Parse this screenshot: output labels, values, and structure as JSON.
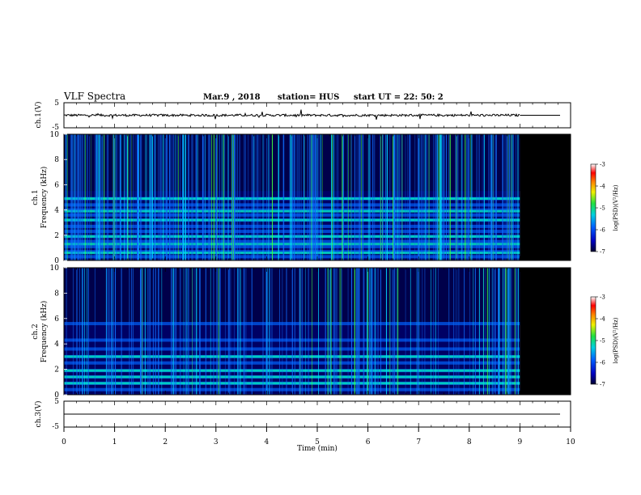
{
  "header": {
    "title": "VLF Spectra",
    "date": "Mar.9 , 2018",
    "station": "station= HUS",
    "start": "start UT = 22: 50: 2"
  },
  "chart_data": [
    {
      "type": "line",
      "panel": "ch1-waveform",
      "ylabel": "ch.1(V)",
      "ylim": [
        -5,
        5
      ],
      "yticks": [
        "5",
        "-5"
      ],
      "xlim": [
        0,
        10
      ],
      "data_end_min": 9.0,
      "baseline_v": 0.0
    },
    {
      "type": "heatmap",
      "panel": "ch1-spectrogram",
      "ylabel_channel": "ch.1",
      "ylabel": "Frequency (kHz)",
      "ylim": [
        0,
        10
      ],
      "yticks": [
        "0",
        "2",
        "4",
        "6",
        "8",
        "10"
      ],
      "xlim": [
        0,
        10
      ],
      "data_end_min": 9.0,
      "colorbar": {
        "label": "log(PSD)(V²/Hz)",
        "ticks": [
          "-3",
          "-4",
          "-5",
          "-6",
          "-7"
        ],
        "range": [
          -7,
          -3
        ]
      },
      "bands_khz": [
        0.3,
        0.7,
        1.1,
        1.5,
        1.9,
        2.3,
        2.7,
        3.2,
        3.6,
        4.0,
        4.4,
        4.9
      ],
      "bright_bands_khz": [
        0.6,
        1.3,
        1.9,
        3.2,
        3.9,
        4.9
      ]
    },
    {
      "type": "heatmap",
      "panel": "ch2-spectrogram",
      "ylabel_channel": "ch.2",
      "ylabel": "Frequency (kHz)",
      "ylim": [
        0,
        10
      ],
      "yticks": [
        "0",
        "2",
        "4",
        "6",
        "8",
        "10"
      ],
      "xlim": [
        0,
        10
      ],
      "data_end_min": 9.0,
      "colorbar": {
        "label": "log(PSD)(V²/Hz)",
        "ticks": [
          "-3",
          "-4",
          "-5",
          "-6",
          "-7"
        ],
        "range": [
          -7,
          -3
        ]
      },
      "bands_khz": [
        0.4,
        0.9,
        1.4,
        1.9,
        2.5,
        3.0,
        3.6,
        4.3,
        5.6
      ],
      "bright_bands_khz": [
        0.9,
        1.4,
        1.9,
        3.0
      ]
    },
    {
      "type": "line",
      "panel": "ch3-waveform",
      "ylabel": "ch.3(V)",
      "ylim": [
        -5,
        5
      ],
      "yticks": [
        "5",
        "-5"
      ],
      "xlim": [
        0,
        10
      ],
      "xticks": [
        "0",
        "1",
        "2",
        "3",
        "4",
        "5",
        "6",
        "7",
        "8",
        "9",
        "10"
      ],
      "xlabel": "Time (min)",
      "baseline_v": 0.0
    }
  ]
}
